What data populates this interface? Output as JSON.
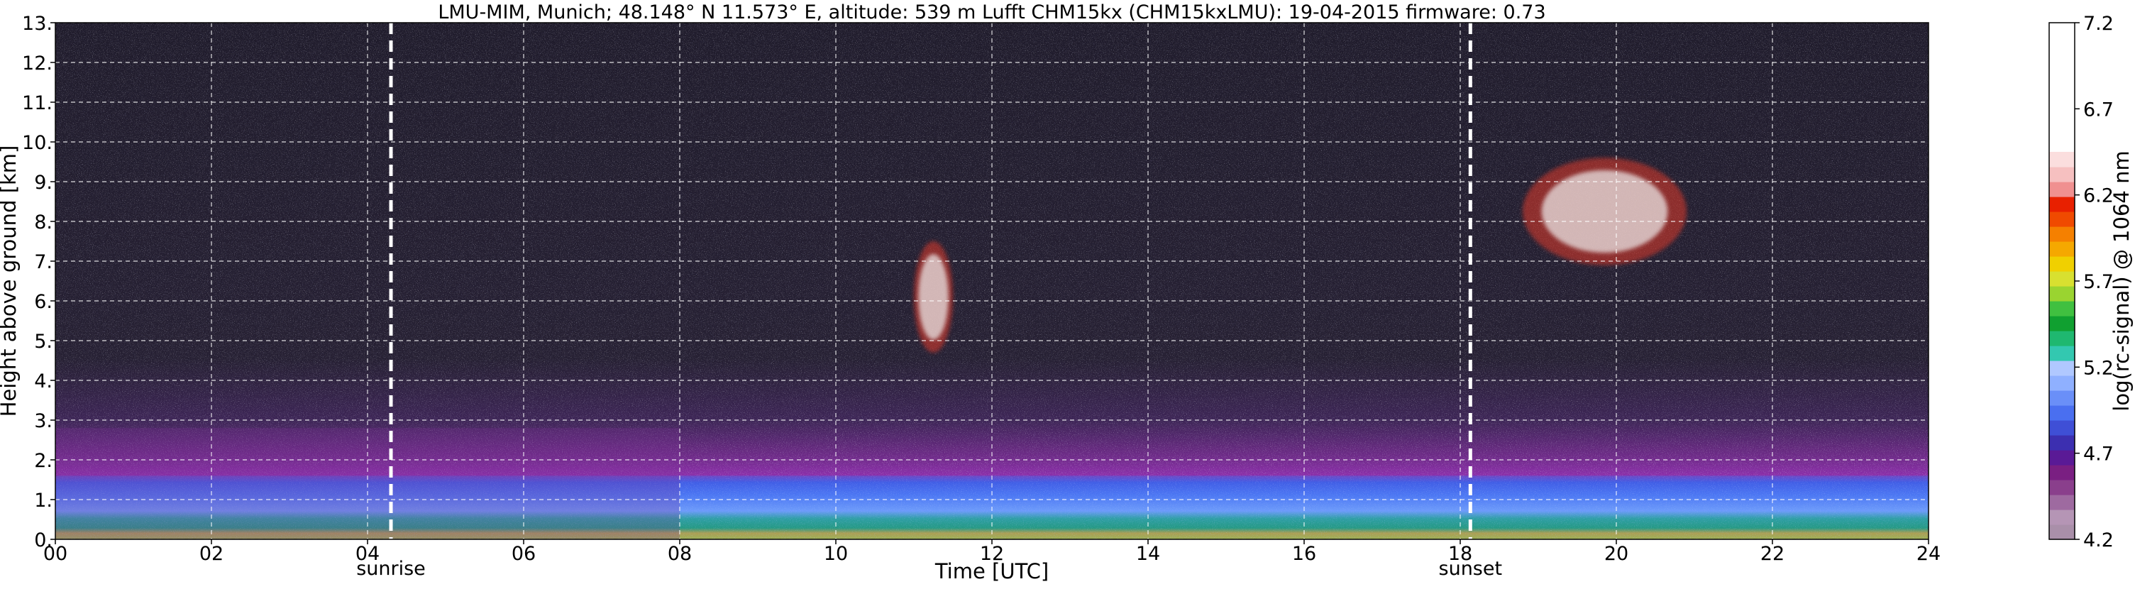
{
  "chart_data": {
    "type": "heatmap",
    "title": "LMU-MIM, Munich; 48.148° N 11.573° E, altitude: 539 m    Lufft CHM15kx (CHM15kxLMU): 19-04-2015    firmware: 0.73",
    "xlabel": "Time [UTC]",
    "ylabel": "Height above ground [km]",
    "xlim": [
      0,
      24
    ],
    "ylim": [
      0,
      13
    ],
    "x_ticks": [
      "00",
      "02",
      "04",
      "06",
      "08",
      "10",
      "12",
      "14",
      "16",
      "18",
      "20",
      "22",
      "24"
    ],
    "y_ticks": [
      "0.",
      "1.",
      "2.",
      "3.",
      "4.",
      "5.",
      "6.",
      "7.",
      "8.",
      "9.",
      "10.",
      "11.",
      "12.",
      "13."
    ],
    "grid": true,
    "annotations": [
      {
        "label": "sunrise",
        "time": 4.3
      },
      {
        "label": "sunset",
        "time": 18.13
      }
    ],
    "colorbar": {
      "label": "log(rc-signal) @ 1064 nm",
      "range": [
        4.2,
        7.2
      ],
      "ticks": [
        "4.2",
        "4.7",
        "5.2",
        "5.7",
        "6.2",
        "6.7",
        "7.2"
      ]
    },
    "features": [
      {
        "type": "boundary-layer",
        "time_start": 0,
        "time_end": 24,
        "height_top": 1.6
      },
      {
        "type": "residual-layer",
        "time_start": 0,
        "time_end": 8,
        "height_top": 2.8
      },
      {
        "type": "cirrus-cloud",
        "time_start": 11.0,
        "time_end": 11.5,
        "height_bottom": 4.7,
        "height_top": 7.5
      },
      {
        "type": "cirrus-cloud",
        "time_start": 18.8,
        "time_end": 20.9,
        "height_bottom": 6.9,
        "height_top": 9.6
      }
    ]
  }
}
